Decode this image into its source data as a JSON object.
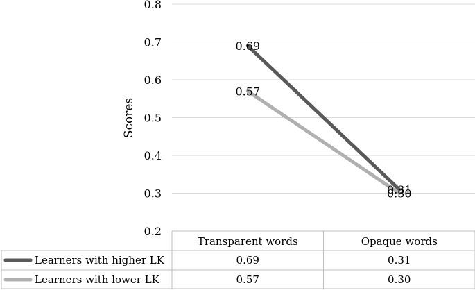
{
  "chart_data": {
    "type": "line",
    "categories": [
      "Transparent words",
      "Opaque words"
    ],
    "series": [
      {
        "name": "Learners with higher LK",
        "values": [
          0.69,
          0.31
        ],
        "labels": [
          "0.69",
          "0.31"
        ],
        "color": "#595959"
      },
      {
        "name": "Learners with lower LK",
        "values": [
          0.57,
          0.3
        ],
        "labels": [
          "0.57",
          "0.30"
        ],
        "color": "#b0b0b0"
      }
    ],
    "ylabel": "Scores",
    "ylim": [
      0.2,
      0.8
    ],
    "yticks": [
      "0.2",
      "0.3",
      "0.4",
      "0.5",
      "0.6",
      "0.7",
      "0.8"
    ],
    "grid": true,
    "legend": "data-table"
  }
}
